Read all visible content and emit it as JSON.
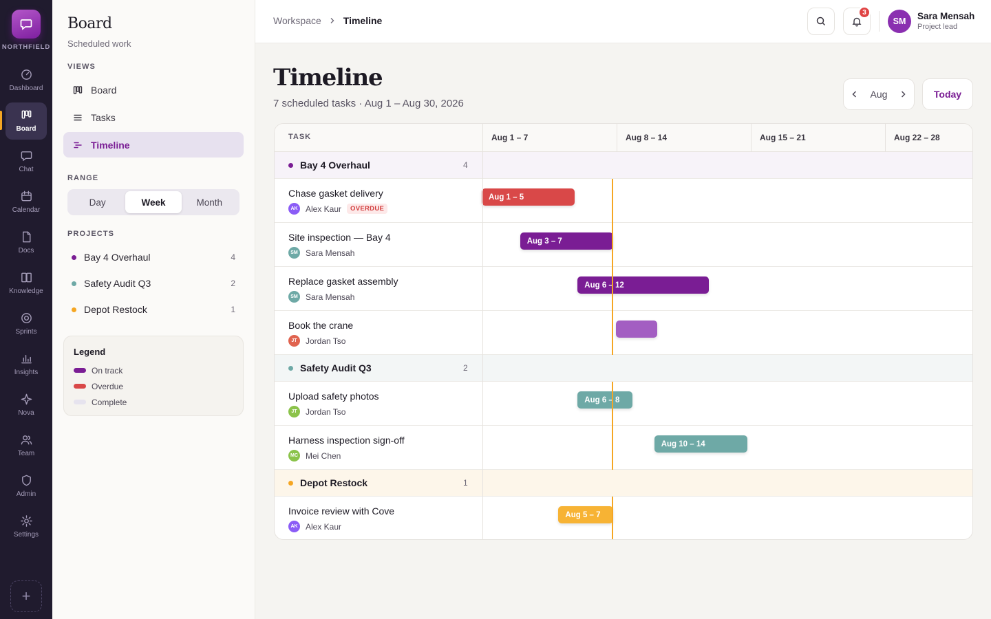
{
  "brand": {
    "name": "NORTHFIELD"
  },
  "rail": [
    {
      "label": "Dashboard",
      "icon": "gauge-icon"
    },
    {
      "label": "Board",
      "icon": "board-icon",
      "active": true
    },
    {
      "label": "Chat",
      "icon": "chat-icon"
    },
    {
      "label": "Calendar",
      "icon": "calendar-icon"
    },
    {
      "label": "Docs",
      "icon": "doc-icon"
    },
    {
      "label": "Knowledge",
      "icon": "book-icon"
    },
    {
      "label": "Sprints",
      "icon": "target-icon"
    },
    {
      "label": "Insights",
      "icon": "chart-icon"
    },
    {
      "label": "Nova",
      "icon": "sparkle-icon"
    },
    {
      "label": "Team",
      "icon": "team-icon"
    },
    {
      "label": "Admin",
      "icon": "shield-icon"
    },
    {
      "label": "Settings",
      "icon": "gear-icon"
    }
  ],
  "sidebar": {
    "title": "Board",
    "subtitle": "Scheduled work",
    "views_label": "VIEWS",
    "views": [
      {
        "label": "Board",
        "icon": "kanban-icon"
      },
      {
        "label": "Tasks",
        "icon": "list-icon"
      },
      {
        "label": "Timeline",
        "icon": "timeline-icon",
        "active": true
      }
    ],
    "range_label": "RANGE",
    "range_options": [
      "Day",
      "Week",
      "Month"
    ],
    "range_selected": "Week",
    "projects_label": "PROJECTS",
    "projects": [
      {
        "name": "Bay 4 Overhaul",
        "count": "4",
        "color": "#7a1d94"
      },
      {
        "name": "Safety Audit Q3",
        "count": "2",
        "color": "#6ea9a6"
      },
      {
        "name": "Depot Restock",
        "count": "1",
        "color": "#f5a623"
      }
    ],
    "legend": {
      "title": "Legend",
      "items": [
        {
          "label": "On track",
          "color": "#7a1d94"
        },
        {
          "label": "Overdue",
          "color": "#d94848"
        },
        {
          "label": "Complete",
          "color": "#e6e3ee"
        }
      ]
    }
  },
  "topbar": {
    "breadcrumb": [
      "Workspace",
      "Timeline"
    ],
    "notifications": "3",
    "user": {
      "initials": "SM",
      "name": "Sara Mensah",
      "role": "Project lead"
    }
  },
  "main": {
    "title": "Timeline",
    "subtitle": "7 scheduled tasks · Aug 1 – Aug 30, 2026",
    "month": "Aug",
    "today_label": "Today",
    "task_col": "TASK",
    "weeks": [
      "Aug 1 – 7",
      "Aug 8 – 14",
      "Aug 15 – 21",
      "Aug 22 – 28"
    ],
    "groups": [
      {
        "name": "Bay 4 Overhaul",
        "count": "4",
        "dot": "#7a1d94",
        "bg": "#f7f3f9",
        "tasks": [
          {
            "name": "Chase gasket delivery",
            "owner": "Alex Kaur",
            "initials": "AK",
            "av": "#8b5cf6",
            "tag": "OVERDUE",
            "bar_label": "Aug 1 – 5",
            "start_day": 1,
            "end_day": 5,
            "bar_color": "#d94848"
          },
          {
            "name": "Site inspection — Bay 4",
            "owner": "Sara Mensah",
            "initials": "SM",
            "av": "#6ea9a6",
            "bar_label": "Aug 3 – 7",
            "start_day": 3,
            "end_day": 7,
            "bar_color": "#7a1d94"
          },
          {
            "name": "Replace gasket assembly",
            "owner": "Sara Mensah",
            "initials": "SM",
            "av": "#6ea9a6",
            "bar_label": "Aug 6 – 12",
            "start_day": 6,
            "end_day": 12,
            "bar_color": "#7a1d94"
          },
          {
            "name": "Book the crane",
            "owner": "Jordan Tso",
            "initials": "JT",
            "av": "#e0634f",
            "bar_label": "",
            "start_day": 8,
            "end_day": 9,
            "bar_color": "#a35ec2"
          }
        ]
      },
      {
        "name": "Safety Audit Q3",
        "count": "2",
        "dot": "#6ea9a6",
        "bg": "#f3f6f6",
        "tasks": [
          {
            "name": "Upload safety photos",
            "owner": "Jordan Tso",
            "initials": "JT",
            "av": "#8bc34a",
            "bar_label": "Aug 6 – 8",
            "start_day": 6,
            "end_day": 8,
            "bar_color": "#6ea9a6"
          },
          {
            "name": "Harness inspection sign-off",
            "owner": "Mei Chen",
            "initials": "MC",
            "av": "#8bc34a",
            "bar_label": "Aug 10 – 14",
            "start_day": 10,
            "end_day": 14,
            "bar_color": "#6ea9a6"
          }
        ]
      },
      {
        "name": "Depot Restock",
        "count": "1",
        "dot": "#f5a623",
        "bg": "#fdf6ea",
        "tasks": [
          {
            "name": "Invoice review with Cove",
            "owner": "Alex Kaur",
            "initials": "AK",
            "av": "#8b5cf6",
            "bar_label": "Aug 5 – 7",
            "start_day": 5,
            "end_day": 7,
            "bar_color": "#f7b334"
          }
        ]
      }
    ],
    "today_day": 7
  }
}
